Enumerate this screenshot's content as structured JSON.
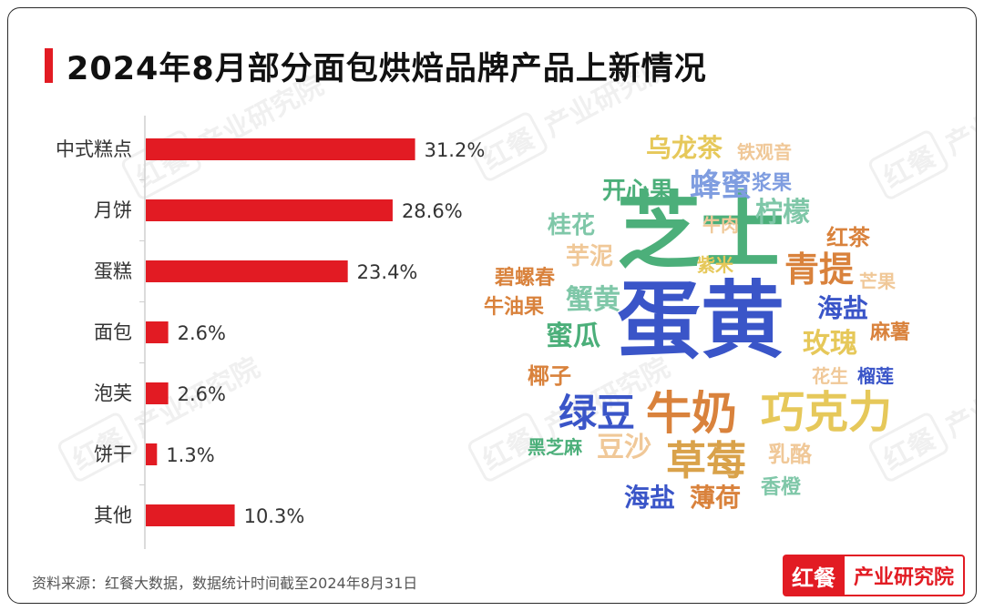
{
  "title": "2024年8月部分面包烘焙品牌产品上新情况",
  "accent_color": "#e21b23",
  "chart_data": {
    "type": "bar",
    "orientation": "horizontal",
    "categories": [
      "中式糕点",
      "月饼",
      "蛋糕",
      "面包",
      "泡芙",
      "饼干",
      "其他"
    ],
    "values": [
      31.2,
      28.6,
      23.4,
      2.6,
      2.6,
      1.3,
      10.3
    ],
    "value_labels": [
      "31.2%",
      "28.6%",
      "23.4%",
      "2.6%",
      "2.6%",
      "1.3%",
      "10.3%"
    ],
    "unit": "%",
    "xlim": [
      0,
      38
    ],
    "bar_color": "#e21b23",
    "grid": false
  },
  "wordcloud": [
    {
      "text": "芝士",
      "color": "#4caf7a"
    },
    {
      "text": "蛋黄",
      "color": "#3a55c8"
    },
    {
      "text": "牛奶",
      "color": "#d9823c"
    },
    {
      "text": "巧克力",
      "color": "#e6c85a"
    },
    {
      "text": "草莓",
      "color": "#d9a24a"
    },
    {
      "text": "绿豆",
      "color": "#3a55c8"
    },
    {
      "text": "青提",
      "color": "#d9823c"
    },
    {
      "text": "蜂蜜",
      "color": "#7f9de0"
    },
    {
      "text": "乌龙茶",
      "color": "#e6c85a"
    },
    {
      "text": "铁观音",
      "color": "#f0c898"
    },
    {
      "text": "开心果",
      "color": "#4caf7a"
    },
    {
      "text": "浆果",
      "color": "#7f9de0"
    },
    {
      "text": "柠檬",
      "color": "#7fc7a8"
    },
    {
      "text": "桂花",
      "color": "#7fc7a8"
    },
    {
      "text": "牛肉",
      "color": "#f0c898"
    },
    {
      "text": "红茶",
      "color": "#d9823c"
    },
    {
      "text": "芋泥",
      "color": "#f0c898"
    },
    {
      "text": "紫米",
      "color": "#e6c85a"
    },
    {
      "text": "碧螺春",
      "color": "#d9823c"
    },
    {
      "text": "芒果",
      "color": "#f0c898"
    },
    {
      "text": "蟹黄",
      "color": "#7fc7a8"
    },
    {
      "text": "海盐",
      "color": "#3a55c8"
    },
    {
      "text": "牛油果",
      "color": "#d9823c"
    },
    {
      "text": "蜜瓜",
      "color": "#4caf7a"
    },
    {
      "text": "玫瑰",
      "color": "#e6c85a"
    },
    {
      "text": "麻薯",
      "color": "#d9823c"
    },
    {
      "text": "椰子",
      "color": "#d9823c"
    },
    {
      "text": "花生",
      "color": "#f0c898"
    },
    {
      "text": "榴莲",
      "color": "#3a55c8"
    },
    {
      "text": "豆沙",
      "color": "#f0c898"
    },
    {
      "text": "黑芝麻",
      "color": "#4caf7a"
    },
    {
      "text": "乳酪",
      "color": "#f0c898"
    },
    {
      "text": "海盐",
      "color": "#3a55c8"
    },
    {
      "text": "薄荷",
      "color": "#d9823c"
    },
    {
      "text": "香橙",
      "color": "#7fc7a8"
    }
  ],
  "watermark": {
    "brand": "红餐",
    "label": "产业研究院"
  },
  "source_note": "资料来源：红餐大数据，数据统计时间截至2024年8月31日",
  "brand_logo": {
    "brand": "红餐",
    "label": "产业研究院"
  }
}
